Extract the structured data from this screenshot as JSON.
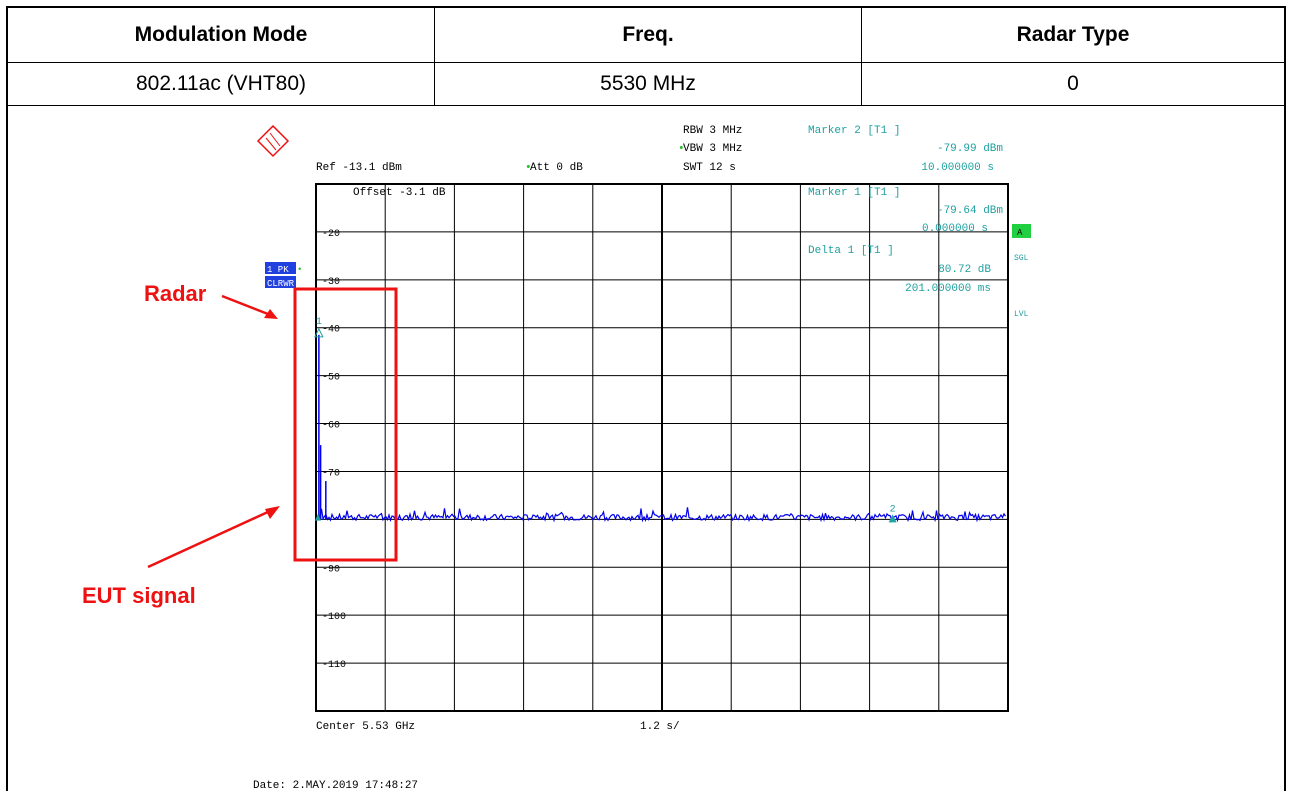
{
  "table": {
    "headers": [
      "Modulation Mode",
      "Freq.",
      "Radar Type"
    ],
    "values": [
      "802.11ac (VHT80)",
      "5530 MHz",
      "0"
    ]
  },
  "chart_data": {
    "type": "line",
    "ylim": [
      -120,
      -10
    ],
    "yticks": [
      -20,
      -30,
      -40,
      -50,
      -60,
      -70,
      -90,
      -100,
      -110
    ],
    "ytick_labels": [
      "-20",
      "-30",
      "-40",
      "-50",
      "-60",
      "-70",
      "-90",
      "-100",
      "-110"
    ],
    "x_unit_per_div": "1.2 s/",
    "x_range_s": [
      0,
      12
    ],
    "noise_floor_dbm": -80,
    "radar_pulses": [
      {
        "t_s": 0.05,
        "level_dbm": -41.5
      },
      {
        "t_s": 0.08,
        "level_dbm": -64.5
      },
      {
        "t_s": 0.17,
        "level_dbm": -72
      }
    ],
    "markers": [
      {
        "label": "1",
        "t_s": 0.0,
        "level_dbm": -79.64
      },
      {
        "label": "2",
        "t_s": 10.0,
        "level_dbm": -79.99
      }
    ]
  },
  "instrument": {
    "rbw": "RBW 3 MHz",
    "vbw": "VBW 3 MHz",
    "swt": "SWT 12 s",
    "ref": "Ref -13.1 dBm",
    "att": "Att  0 dB",
    "offset": "Offset -3.1 dB",
    "center": "Center 5.53 GHz",
    "xdiv": "1.2 s/",
    "trace_mode_1": "1 PK",
    "trace_mode_2": "CLRWR",
    "side_a": "A",
    "side_sgl": "SGL",
    "side_lvl": "LVL",
    "date": "Date:      2.MAY.2019  17:48:27"
  },
  "marker_readout": {
    "m2_title": "Marker 2 [T1 ]",
    "m2_level": "-79.99 dBm",
    "m2_time": "10.000000 s",
    "m1_title": "Marker 1 [T1 ]",
    "m1_level": "-79.64 dBm",
    "m1_time": "0.000000 s",
    "d1_title": "Delta 1 [T1 ]",
    "d1_level": "80.72 dB",
    "d1_time": "201.000000 ms"
  },
  "annotations": {
    "radar": "Radar",
    "eut": "EUT signal"
  },
  "colors": {
    "trace": "#0000ee",
    "marker_text": "#20a0a0",
    "annotation": "#ee1111",
    "badge_blue": "#2040e0",
    "badge_green": "#20d040"
  }
}
